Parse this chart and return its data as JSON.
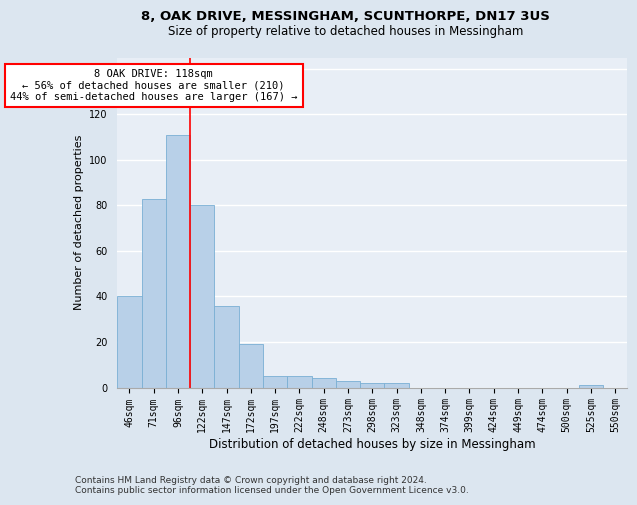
{
  "title1": "8, OAK DRIVE, MESSINGHAM, SCUNTHORPE, DN17 3US",
  "title2": "Size of property relative to detached houses in Messingham",
  "xlabel": "Distribution of detached houses by size in Messingham",
  "ylabel": "Number of detached properties",
  "footnote": "Contains HM Land Registry data © Crown copyright and database right 2024.\nContains public sector information licensed under the Open Government Licence v3.0.",
  "categories": [
    "46sqm",
    "71sqm",
    "96sqm",
    "122sqm",
    "147sqm",
    "172sqm",
    "197sqm",
    "222sqm",
    "248sqm",
    "273sqm",
    "298sqm",
    "323sqm",
    "348sqm",
    "374sqm",
    "399sqm",
    "424sqm",
    "449sqm",
    "474sqm",
    "500sqm",
    "525sqm",
    "550sqm"
  ],
  "values": [
    40,
    83,
    111,
    80,
    36,
    19,
    5,
    5,
    4,
    3,
    2,
    2,
    0,
    0,
    0,
    0,
    0,
    0,
    0,
    1,
    0
  ],
  "bar_color": "#b8d0e8",
  "bar_edgecolor": "#7aafd4",
  "vline_color": "red",
  "vline_x": 2.5,
  "annotation_text": "8 OAK DRIVE: 118sqm\n← 56% of detached houses are smaller (210)\n44% of semi-detached houses are larger (167) →",
  "annotation_box_color": "white",
  "annotation_box_edgecolor": "red",
  "ylim": [
    0,
    145
  ],
  "background_color": "#dce6f0",
  "plot_background": "#e8eef6",
  "grid_color": "white",
  "title1_fontsize": 9.5,
  "title2_fontsize": 8.5,
  "xlabel_fontsize": 8.5,
  "ylabel_fontsize": 8,
  "tick_fontsize": 7,
  "annotation_fontsize": 7.5,
  "footnote_fontsize": 6.5
}
